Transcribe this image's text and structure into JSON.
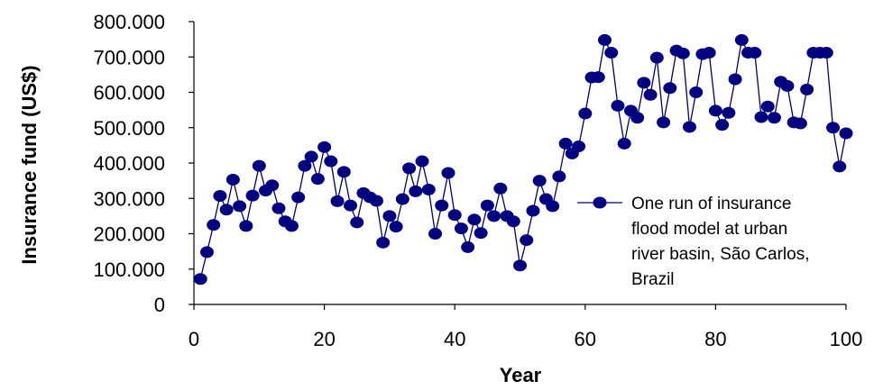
{
  "chart_data": {
    "type": "line",
    "xlabel": "Year",
    "ylabel": "Insurance fund (US$)",
    "xlim": [
      0,
      100
    ],
    "ylim": [
      0,
      800000
    ],
    "x_ticks": [
      "0",
      "20",
      "40",
      "60",
      "80",
      "100"
    ],
    "y_ticks": [
      "0",
      "100.000",
      "200.000",
      "300.000",
      "400.000",
      "500.000",
      "600.000",
      "700.000",
      "800.000"
    ],
    "grid": false,
    "legend_position": "right",
    "colors": {
      "series": "#000066",
      "marker": "#000080"
    },
    "series": [
      {
        "name": "One run of insurance flood model at urban river basin, São Carlos, Brazil",
        "legend_lines": [
          "One run of insurance",
          "flood model at urban",
          "river basin, São Carlos,",
          "Brazil"
        ],
        "x": [
          1,
          2,
          3,
          4,
          5,
          6,
          7,
          8,
          9,
          10,
          11,
          12,
          13,
          14,
          15,
          16,
          17,
          18,
          19,
          20,
          21,
          22,
          23,
          24,
          25,
          26,
          27,
          28,
          29,
          30,
          31,
          32,
          33,
          34,
          35,
          36,
          37,
          38,
          39,
          40,
          41,
          42,
          43,
          44,
          45,
          46,
          47,
          48,
          49,
          50,
          51,
          52,
          53,
          54,
          55,
          56,
          57,
          58,
          59,
          60,
          61,
          62,
          63,
          64,
          65,
          66,
          67,
          68,
          69,
          70,
          71,
          72,
          73,
          74,
          75,
          76,
          77,
          78,
          79,
          80,
          81,
          82,
          83,
          84,
          85,
          86,
          87,
          88,
          89,
          90,
          91,
          92,
          93,
          94,
          95,
          96,
          97,
          98,
          99,
          100
        ],
        "values": [
          72000,
          148000,
          225000,
          307000,
          268000,
          353000,
          278000,
          222000,
          308000,
          392000,
          322000,
          337000,
          272000,
          235000,
          222000,
          303000,
          392000,
          418000,
          355000,
          445000,
          405000,
          292000,
          375000,
          280000,
          232000,
          315000,
          303000,
          293000,
          175000,
          250000,
          220000,
          298000,
          385000,
          320000,
          405000,
          325000,
          200000,
          280000,
          372000,
          253000,
          215000,
          162000,
          240000,
          202000,
          280000,
          250000,
          328000,
          250000,
          235000,
          110000,
          182000,
          265000,
          350000,
          298000,
          278000,
          362000,
          455000,
          427000,
          447000,
          540000,
          642000,
          643000,
          748000,
          712000,
          562000,
          455000,
          548000,
          528000,
          627000,
          593000,
          698000,
          515000,
          612000,
          718000,
          710000,
          502000,
          600000,
          708000,
          712000,
          548000,
          508000,
          542000,
          637000,
          748000,
          712000,
          712000,
          530000,
          560000,
          528000,
          630000,
          618000,
          515000,
          512000,
          608000,
          712000,
          712000,
          712000,
          500000,
          390000,
          484000
        ]
      }
    ]
  }
}
